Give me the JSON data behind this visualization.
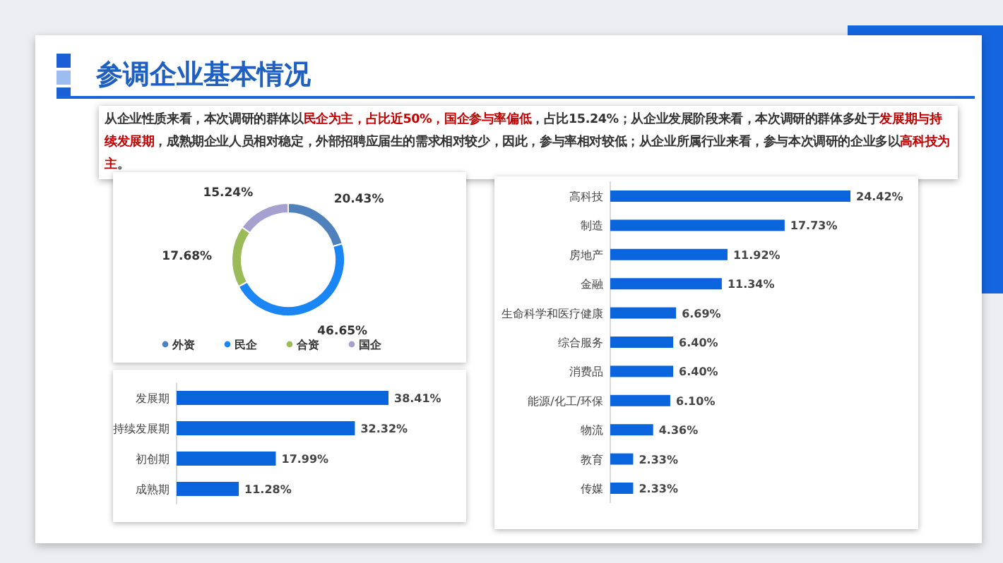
{
  "chart_data": [
    {
      "type": "donut",
      "title": "参调企业基本情况",
      "subtitle": "从企业性质来看，本次调研的群体以**民企为主，占比近50%，国企参与率偏低**，占比15.24%；从企业发展阶段来看，本次调研的群体多处于**发展期与持续发展期**，成熟期企业人员相对稳定，外部招聘应届生的需求相对较少，因此，参与率相对较低；从企业所属行业来看，参与本次调研的企业多以**高科技为主**。",
      "categories": [
        "外资",
        "民企",
        "合资",
        "国企"
      ],
      "values": [
        20.43,
        46.65,
        17.68,
        15.24
      ],
      "value_labels": [
        "20.43%",
        "46.65%",
        "17.68%",
        "15.24%"
      ],
      "colors": [
        "#4f81bd",
        "#1a86f5",
        "#9bbb59",
        "#a5a0cf"
      ],
      "legend": "bottom"
    },
    {
      "type": "bar",
      "orientation": "horizontal",
      "categories": [
        "发展期",
        "持续发展期",
        "初创期",
        "成熟期"
      ],
      "values": [
        38.41,
        32.32,
        17.99,
        11.28
      ],
      "value_labels": [
        "38.41%",
        "32.32%",
        "17.99%",
        "11.28%"
      ],
      "color": "#0a64dc"
    },
    {
      "type": "bar",
      "orientation": "horizontal",
      "categories": [
        "高科技",
        "制造",
        "房地产",
        "金融",
        "生命科学和医疗健康",
        "综合服务",
        "消费品",
        "能源/化工/环保",
        "物流",
        "教育",
        "传媒"
      ],
      "values": [
        24.42,
        17.73,
        11.92,
        11.34,
        6.69,
        6.4,
        6.4,
        6.1,
        4.36,
        2.33,
        2.33
      ],
      "value_labels": [
        "24.42%",
        "17.73%",
        "11.92%",
        "11.34%",
        "6.69%",
        "6.40%",
        "6.40%",
        "6.10%",
        "4.36%",
        "2.33%",
        "2.33%"
      ],
      "color": "#0a64dc"
    }
  ]
}
